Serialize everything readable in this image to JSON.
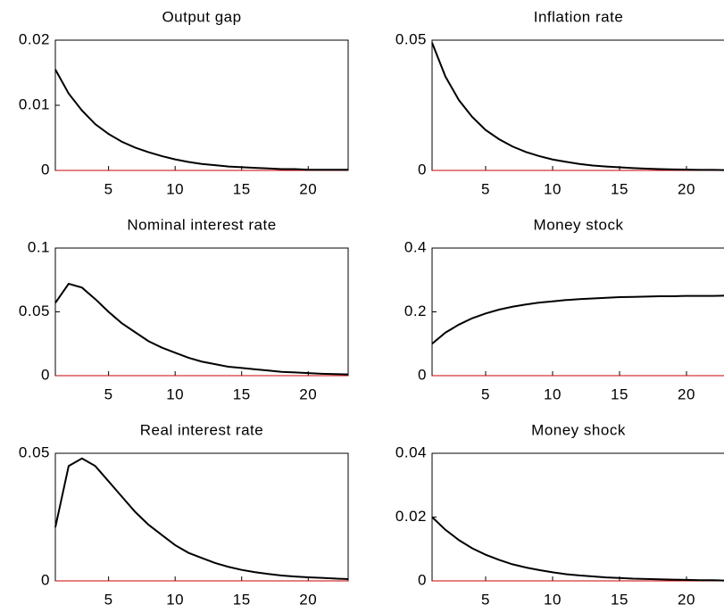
{
  "chart_data": [
    {
      "type": "line",
      "title": "Output gap",
      "x": [
        1,
        2,
        3,
        4,
        5,
        6,
        7,
        8,
        9,
        10,
        11,
        12,
        13,
        14,
        15,
        16,
        17,
        18,
        19,
        20,
        21,
        22,
        23
      ],
      "values": [
        0.0155,
        0.0118,
        0.0092,
        0.0071,
        0.0056,
        0.0044,
        0.0035,
        0.0028,
        0.0022,
        0.0017,
        0.0013,
        0.001,
        0.0008,
        0.0006,
        0.0005,
        0.0004,
        0.0003,
        0.0002,
        0.0002,
        0.0001,
        0.0001,
        0.0001,
        0.0001
      ],
      "color": "#000000",
      "zero_line_color": "#cc0000",
      "xlim": [
        1,
        23
      ],
      "xticks": [
        5,
        10,
        15,
        20
      ],
      "ylim": [
        0,
        0.02
      ],
      "yticks": [
        0,
        0.01,
        0.02
      ]
    },
    {
      "type": "line",
      "title": "Inflation rate",
      "x": [
        1,
        2,
        3,
        4,
        5,
        6,
        7,
        8,
        9,
        10,
        11,
        12,
        13,
        14,
        15,
        16,
        17,
        18,
        19,
        20,
        21,
        22,
        23
      ],
      "values": [
        0.049,
        0.036,
        0.027,
        0.0205,
        0.0155,
        0.012,
        0.0092,
        0.0071,
        0.0055,
        0.0042,
        0.0033,
        0.0025,
        0.0019,
        0.0015,
        0.0012,
        0.0009,
        0.0007,
        0.0005,
        0.0004,
        0.0003,
        0.0002,
        0.0002,
        0.0001
      ],
      "color": "#000000",
      "zero_line_color": "#cc0000",
      "xlim": [
        1,
        23
      ],
      "xticks": [
        5,
        10,
        15,
        20
      ],
      "ylim": [
        0,
        0.05
      ],
      "yticks": [
        0,
        0.05
      ]
    },
    {
      "type": "line",
      "title": "Nominal interest rate",
      "x": [
        1,
        2,
        3,
        4,
        5,
        6,
        7,
        8,
        9,
        10,
        11,
        12,
        13,
        14,
        15,
        16,
        17,
        18,
        19,
        20,
        21,
        22,
        23
      ],
      "values": [
        0.057,
        0.072,
        0.069,
        0.06,
        0.05,
        0.041,
        0.034,
        0.027,
        0.022,
        0.018,
        0.014,
        0.011,
        0.009,
        0.007,
        0.006,
        0.005,
        0.004,
        0.003,
        0.0025,
        0.002,
        0.0015,
        0.0012,
        0.001
      ],
      "color": "#000000",
      "zero_line_color": "#cc0000",
      "xlim": [
        1,
        23
      ],
      "xticks": [
        5,
        10,
        15,
        20
      ],
      "ylim": [
        0,
        0.1
      ],
      "yticks": [
        0,
        0.05,
        0.1
      ]
    },
    {
      "type": "line",
      "title": "Money stock",
      "x": [
        1,
        2,
        3,
        4,
        5,
        6,
        7,
        8,
        9,
        10,
        11,
        12,
        13,
        14,
        15,
        16,
        17,
        18,
        19,
        20,
        21,
        22,
        23
      ],
      "values": [
        0.1,
        0.135,
        0.16,
        0.18,
        0.195,
        0.207,
        0.216,
        0.223,
        0.229,
        0.233,
        0.237,
        0.24,
        0.242,
        0.244,
        0.246,
        0.247,
        0.248,
        0.249,
        0.249,
        0.25,
        0.25,
        0.25,
        0.251
      ],
      "color": "#000000",
      "zero_line_color": "#cc0000",
      "xlim": [
        1,
        23
      ],
      "xticks": [
        5,
        10,
        15,
        20
      ],
      "ylim": [
        0,
        0.4
      ],
      "yticks": [
        0,
        0.2,
        0.4
      ]
    },
    {
      "type": "line",
      "title": "Real interest rate",
      "x": [
        1,
        2,
        3,
        4,
        5,
        6,
        7,
        8,
        9,
        10,
        11,
        12,
        13,
        14,
        15,
        16,
        17,
        18,
        19,
        20,
        21,
        22,
        23
      ],
      "values": [
        0.021,
        0.045,
        0.048,
        0.045,
        0.039,
        0.033,
        0.027,
        0.022,
        0.018,
        0.014,
        0.011,
        0.009,
        0.007,
        0.0055,
        0.0043,
        0.0034,
        0.0027,
        0.0021,
        0.0017,
        0.0014,
        0.0012,
        0.0009,
        0.0007
      ],
      "color": "#000000",
      "zero_line_color": "#cc0000",
      "xlim": [
        1,
        23
      ],
      "xticks": [
        5,
        10,
        15,
        20
      ],
      "ylim": [
        0,
        0.05
      ],
      "yticks": [
        0,
        0.05
      ]
    },
    {
      "type": "line",
      "title": "Money shock",
      "x": [
        1,
        2,
        3,
        4,
        5,
        6,
        7,
        8,
        9,
        10,
        11,
        12,
        13,
        14,
        15,
        16,
        17,
        18,
        19,
        20,
        21,
        22,
        23
      ],
      "values": [
        0.02,
        0.016,
        0.0128,
        0.0102,
        0.0082,
        0.0066,
        0.0052,
        0.0042,
        0.0034,
        0.0027,
        0.0021,
        0.0017,
        0.0014,
        0.0011,
        0.0009,
        0.0007,
        0.0006,
        0.0005,
        0.0004,
        0.0003,
        0.0002,
        0.0002,
        0.0001
      ],
      "color": "#000000",
      "zero_line_color": "#cc0000",
      "xlim": [
        1,
        23
      ],
      "xticks": [
        5,
        10,
        15,
        20
      ],
      "ylim": [
        0,
        0.04
      ],
      "yticks": [
        0,
        0.02,
        0.04
      ]
    }
  ]
}
